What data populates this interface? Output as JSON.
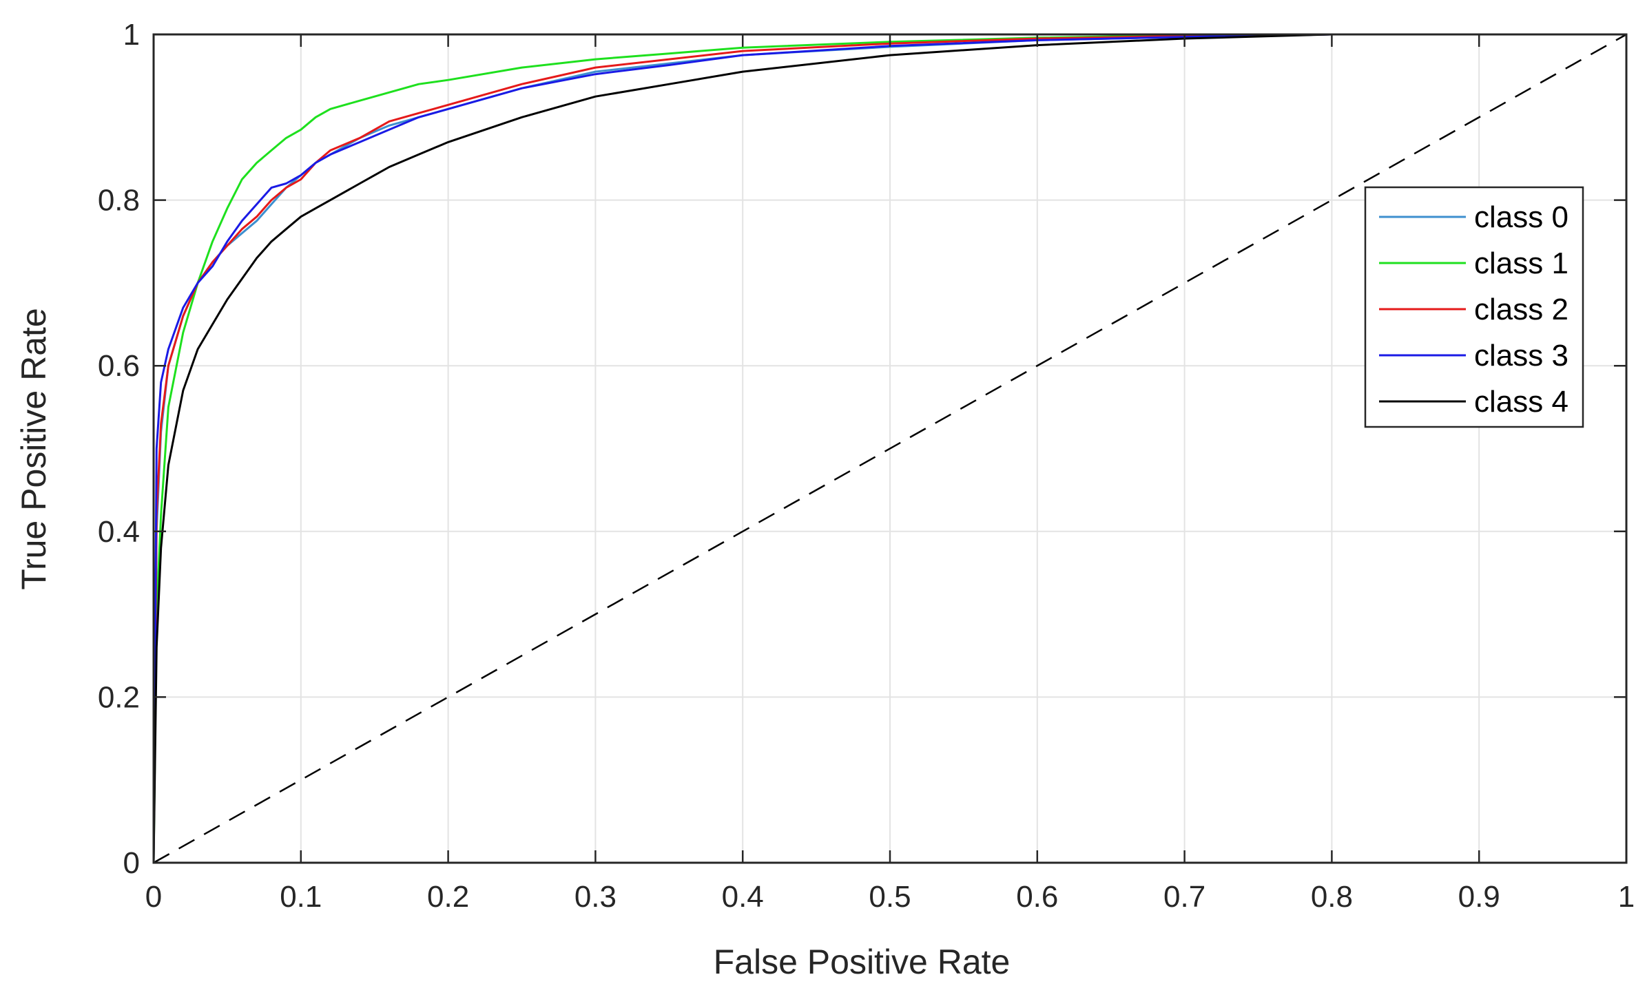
{
  "chart_data": {
    "type": "line",
    "title": "",
    "xlabel": "False Positive Rate",
    "ylabel": "True Positive Rate",
    "xlim": [
      0,
      1
    ],
    "ylim": [
      0,
      1
    ],
    "grid": true,
    "legend_position": "top-right",
    "x_ticks": [
      {
        "value": 0,
        "label": "0"
      },
      {
        "value": 0.1,
        "label": "0.1"
      },
      {
        "value": 0.2,
        "label": "0.2"
      },
      {
        "value": 0.3,
        "label": "0.3"
      },
      {
        "value": 0.4,
        "label": "0.4"
      },
      {
        "value": 0.5,
        "label": "0.5"
      },
      {
        "value": 0.6,
        "label": "0.6"
      },
      {
        "value": 0.7,
        "label": "0.7"
      },
      {
        "value": 0.8,
        "label": "0.8"
      },
      {
        "value": 0.9,
        "label": "0.9"
      },
      {
        "value": 1,
        "label": "1"
      }
    ],
    "y_ticks": [
      {
        "value": 0,
        "label": "0"
      },
      {
        "value": 0.2,
        "label": "0.2"
      },
      {
        "value": 0.4,
        "label": "0.4"
      },
      {
        "value": 0.6,
        "label": "0.6"
      },
      {
        "value": 0.8,
        "label": "0.8"
      },
      {
        "value": 1,
        "label": "1"
      }
    ],
    "series": [
      {
        "name": "class 0",
        "color": "#3d8fcf",
        "x": [
          0,
          0.002,
          0.005,
          0.01,
          0.02,
          0.03,
          0.04,
          0.05,
          0.06,
          0.07,
          0.08,
          0.09,
          0.1,
          0.11,
          0.12,
          0.14,
          0.16,
          0.18,
          0.2,
          0.25,
          0.3,
          0.35,
          0.4,
          0.5,
          0.6,
          0.7,
          0.8,
          1
        ],
        "y": [
          0,
          0.4,
          0.52,
          0.6,
          0.66,
          0.7,
          0.725,
          0.745,
          0.76,
          0.775,
          0.795,
          0.815,
          0.83,
          0.845,
          0.855,
          0.875,
          0.89,
          0.9,
          0.91,
          0.935,
          0.955,
          0.965,
          0.975,
          0.985,
          0.993,
          0.997,
          1.0,
          1.0
        ]
      },
      {
        "name": "class 1",
        "color": "#1ee01e",
        "x": [
          0,
          0.002,
          0.005,
          0.01,
          0.02,
          0.03,
          0.04,
          0.05,
          0.06,
          0.07,
          0.08,
          0.09,
          0.1,
          0.11,
          0.12,
          0.14,
          0.16,
          0.18,
          0.2,
          0.25,
          0.3,
          0.35,
          0.4,
          0.5,
          0.6,
          0.7,
          0.8,
          1
        ],
        "y": [
          0,
          0.3,
          0.42,
          0.55,
          0.64,
          0.7,
          0.75,
          0.79,
          0.825,
          0.845,
          0.86,
          0.875,
          0.885,
          0.9,
          0.91,
          0.92,
          0.93,
          0.94,
          0.945,
          0.96,
          0.97,
          0.977,
          0.984,
          0.991,
          0.996,
          0.999,
          1.0,
          1.0
        ]
      },
      {
        "name": "class 2",
        "color": "#e51a1a",
        "x": [
          0,
          0.002,
          0.005,
          0.01,
          0.02,
          0.03,
          0.04,
          0.05,
          0.06,
          0.07,
          0.08,
          0.09,
          0.1,
          0.11,
          0.12,
          0.14,
          0.16,
          0.18,
          0.2,
          0.25,
          0.3,
          0.35,
          0.4,
          0.5,
          0.6,
          0.7,
          0.8,
          1
        ],
        "y": [
          0,
          0.42,
          0.53,
          0.6,
          0.66,
          0.7,
          0.725,
          0.745,
          0.765,
          0.78,
          0.8,
          0.815,
          0.825,
          0.845,
          0.86,
          0.875,
          0.895,
          0.905,
          0.915,
          0.94,
          0.96,
          0.97,
          0.98,
          0.989,
          0.995,
          0.998,
          1.0,
          1.0
        ]
      },
      {
        "name": "class 3",
        "color": "#1a1ae5",
        "x": [
          0,
          0.002,
          0.005,
          0.01,
          0.02,
          0.03,
          0.04,
          0.05,
          0.06,
          0.07,
          0.08,
          0.09,
          0.1,
          0.11,
          0.12,
          0.14,
          0.16,
          0.18,
          0.2,
          0.25,
          0.3,
          0.35,
          0.4,
          0.5,
          0.6,
          0.7,
          0.8,
          1
        ],
        "y": [
          0,
          0.5,
          0.58,
          0.62,
          0.67,
          0.7,
          0.72,
          0.75,
          0.775,
          0.795,
          0.815,
          0.82,
          0.83,
          0.845,
          0.855,
          0.87,
          0.885,
          0.9,
          0.91,
          0.935,
          0.952,
          0.963,
          0.975,
          0.986,
          0.993,
          0.997,
          1.0,
          1.0
        ]
      },
      {
        "name": "class 4",
        "color": "#000000",
        "x": [
          0,
          0.002,
          0.005,
          0.01,
          0.02,
          0.03,
          0.04,
          0.05,
          0.06,
          0.07,
          0.08,
          0.09,
          0.1,
          0.11,
          0.12,
          0.14,
          0.16,
          0.18,
          0.2,
          0.25,
          0.3,
          0.35,
          0.4,
          0.5,
          0.6,
          0.7,
          0.8,
          1
        ],
        "y": [
          0,
          0.26,
          0.38,
          0.48,
          0.57,
          0.62,
          0.65,
          0.68,
          0.705,
          0.73,
          0.75,
          0.765,
          0.78,
          0.79,
          0.8,
          0.82,
          0.84,
          0.855,
          0.87,
          0.9,
          0.925,
          0.94,
          0.955,
          0.975,
          0.987,
          0.995,
          1.0,
          1.0
        ]
      }
    ],
    "reference_line": {
      "name": "chance-diagonal",
      "color": "#000000",
      "style": "dashed",
      "x": [
        0,
        1
      ],
      "y": [
        0,
        1
      ]
    }
  }
}
